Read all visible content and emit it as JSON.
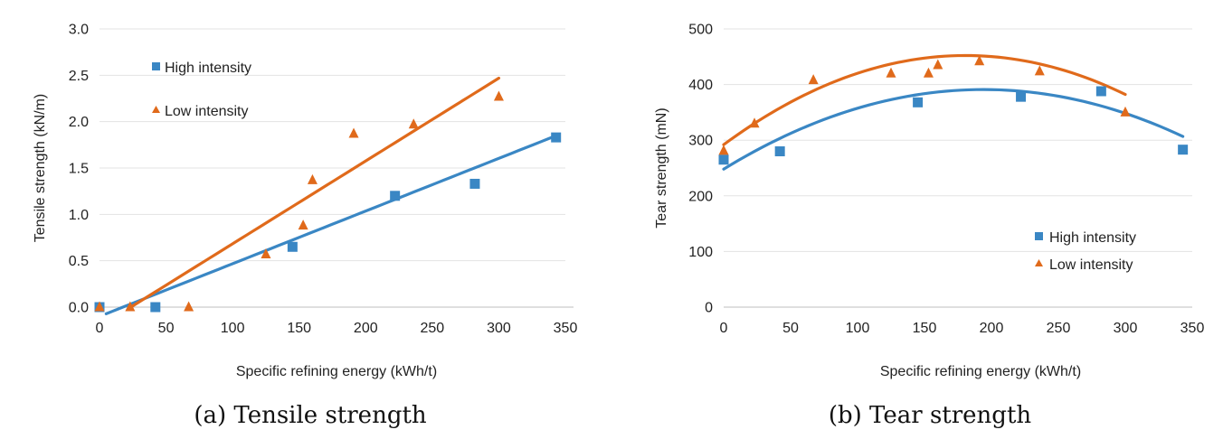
{
  "chart_data": [
    {
      "type": "scatter",
      "caption": "(a) Tensile strength",
      "xlabel": "Specific refining energy (kWh/t)",
      "ylabel": "Tensile strength (kN/m)",
      "xlim": [
        0,
        350
      ],
      "ylim": [
        0,
        3.0
      ],
      "xticks": [
        0,
        50,
        100,
        150,
        200,
        250,
        300,
        350
      ],
      "yticks": [
        0.0,
        0.5,
        1.0,
        1.5,
        2.0,
        2.5,
        3.0
      ],
      "ytick_labels": [
        "0.0",
        "0.5",
        "1.0",
        "1.5",
        "2.0",
        "2.5",
        "3.0"
      ],
      "grid": true,
      "legend_position": "top-left",
      "series": [
        {
          "name": "High intensity",
          "marker": "square",
          "color": "#3a87c4",
          "points": [
            [
              0,
              0.0
            ],
            [
              42,
              0.0
            ],
            [
              145,
              0.65
            ],
            [
              222,
              1.2
            ],
            [
              282,
              1.33
            ],
            [
              343,
              1.83
            ]
          ],
          "trend": {
            "kind": "linear",
            "slope": 0.00568,
            "intercept": -0.1,
            "x_range": [
              5,
              343
            ]
          }
        },
        {
          "name": "Low intensity",
          "marker": "triangle",
          "color": "#e06a1b",
          "points": [
            [
              0,
              0.0
            ],
            [
              23,
              0.0
            ],
            [
              67,
              0.0
            ],
            [
              125,
              0.57
            ],
            [
              153,
              0.88
            ],
            [
              160,
              1.37
            ],
            [
              191,
              1.87
            ],
            [
              236,
              1.97
            ],
            [
              300,
              2.27
            ]
          ],
          "trend": {
            "kind": "linear",
            "slope": 0.00893,
            "intercept": -0.21,
            "x_range": [
              23,
              300
            ]
          }
        }
      ]
    },
    {
      "type": "scatter",
      "caption": "(b) Tear strength",
      "xlabel": "Specific refining energy (kWh/t)",
      "ylabel": "Tear strength (mN)",
      "xlim": [
        0,
        350
      ],
      "ylim": [
        0,
        500
      ],
      "xticks": [
        0,
        50,
        100,
        150,
        200,
        250,
        300,
        350
      ],
      "yticks": [
        0,
        100,
        200,
        300,
        400,
        500
      ],
      "ytick_labels": [
        "0",
        "100",
        "200",
        "300",
        "400",
        "500"
      ],
      "grid": true,
      "legend_position": "bottom-right",
      "series": [
        {
          "name": "High intensity",
          "marker": "square",
          "color": "#3a87c4",
          "points": [
            [
              0,
              265
            ],
            [
              42,
              280
            ],
            [
              145,
              368
            ],
            [
              222,
              378
            ],
            [
              282,
              388
            ],
            [
              343,
              283
            ]
          ],
          "trend": {
            "kind": "quadratic",
            "a": -0.0038,
            "b": 1.4744,
            "c": 248,
            "x_range": [
              0,
              343
            ]
          }
        },
        {
          "name": "Low intensity",
          "marker": "triangle",
          "color": "#e06a1b",
          "points": [
            [
              0,
              281
            ],
            [
              23,
              330
            ],
            [
              67,
              408
            ],
            [
              125,
              420
            ],
            [
              153,
              420
            ],
            [
              160,
              435
            ],
            [
              191,
              442
            ],
            [
              236,
              424
            ],
            [
              300,
              350
            ]
          ],
          "trend": {
            "kind": "quadratic",
            "a": -0.00491,
            "b": 1.7736,
            "c": 292,
            "x_range": [
              0,
              300
            ]
          }
        }
      ]
    }
  ]
}
